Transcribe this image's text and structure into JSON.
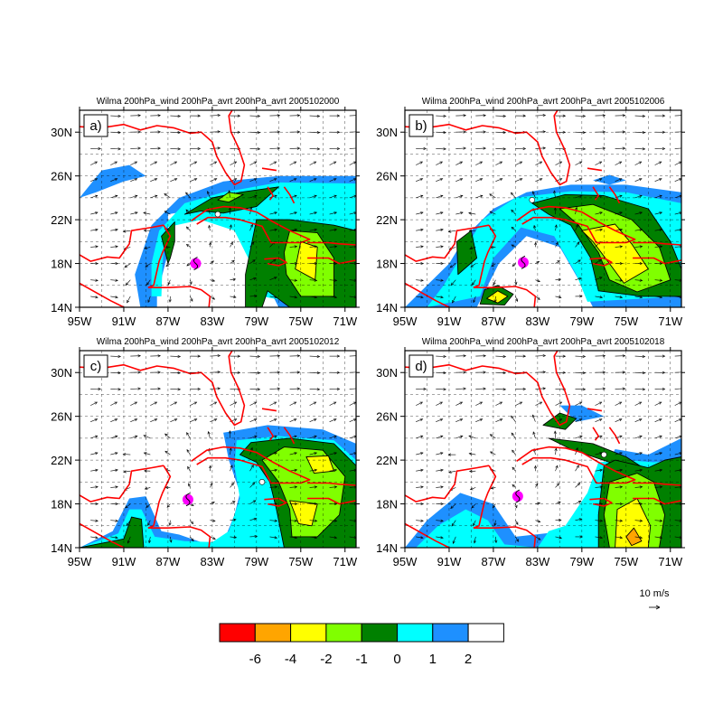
{
  "panels": [
    {
      "id": "a",
      "label": "a)",
      "title": "Wilma 200hPa_wind 200hPa_avrt 200hPa_avrt 2005102000",
      "storm": [
        -84.5,
        18.0
      ],
      "tag": [
        -82.5,
        22.5
      ]
    },
    {
      "id": "b",
      "label": "b)",
      "title": "Wilma 200hPa_wind 200hPa_avrt 200hPa_avrt 2005102006",
      "storm": [
        -84.3,
        18.1
      ],
      "tag": [
        -83.5,
        23.8
      ]
    },
    {
      "id": "c",
      "label": "c)",
      "title": "Wilma 200hPa_wind 200hPa_avrt 200hPa_avrt 2005102012",
      "storm": [
        -85.2,
        18.4
      ],
      "tag": [
        -78.5,
        20.0
      ]
    },
    {
      "id": "d",
      "label": "d)",
      "title": "Wilma 200hPa_wind 200hPa_avrt 200hPa_avrt 2005102018",
      "storm": [
        -84.8,
        18.7
      ],
      "tag": [
        -77.0,
        22.5
      ]
    }
  ],
  "axes": {
    "lon_ticks": [
      "95W",
      "91W",
      "87W",
      "83W",
      "79W",
      "75W",
      "71W"
    ],
    "lat_ticks": [
      "14N",
      "18N",
      "22N",
      "26N",
      "30N"
    ],
    "lon_range": [
      -95,
      -70
    ],
    "lat_range": [
      14,
      32
    ]
  },
  "colorbar": {
    "labels": [
      "-6",
      "-4",
      "-2",
      "-1",
      "0",
      "1",
      "2"
    ],
    "colors": [
      "#ff0000",
      "#ffa500",
      "#ffff00",
      "#80ff00",
      "#008000",
      "#00ffff",
      "#1e90ff",
      "#ffffff"
    ]
  },
  "reference_vector": {
    "label": "10 m/s"
  },
  "colors": {
    "coast": "#ff0000",
    "storm": "#ff00ff",
    "level_2": "#ffffff",
    "level_1": "#1e90ff",
    "level_0": "#00ffff",
    "level_m1": "#008000",
    "level_m2": "#80ff00",
    "level_m4": "#ffff00"
  }
}
